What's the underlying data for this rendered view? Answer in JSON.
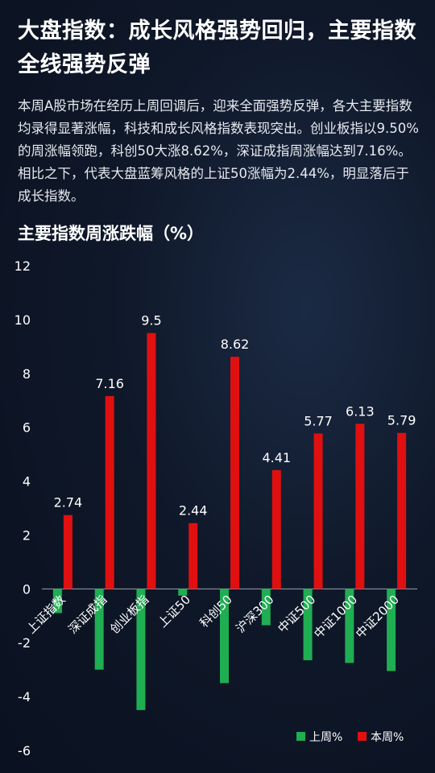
{
  "headline": "大盘指数：成长风格强势回归，主要指数全线强势反弹",
  "intro": "本周A股市场在经历上周回调后，迎来全面强势反弹，各大主要指数均录得显著涨幅，科技和成长风格指数表现突出。创业板指以9.50%的周涨幅领跑，科创50大涨8.62%，深证成指周涨幅达到7.16%。相比之下，代表大盘蓝筹风格的上证50涨幅为2.44%，明显落后于成长指数。",
  "chart_data": {
    "type": "bar",
    "title": "主要指数周涨跌幅（%）",
    "categories": [
      "上证指数",
      "深证成指",
      "创业板指",
      "上证50",
      "科创50",
      "沪深300",
      "中证500",
      "中证1000",
      "中证2000"
    ],
    "series": [
      {
        "name": "上周%",
        "color": "#1fae52",
        "values": [
          -0.9,
          -3.0,
          -4.5,
          -0.25,
          -3.5,
          -1.35,
          -2.65,
          -2.75,
          -3.05
        ]
      },
      {
        "name": "本周%",
        "color": "#e01010",
        "values": [
          2.74,
          7.16,
          9.5,
          2.44,
          8.62,
          4.41,
          5.77,
          6.13,
          5.79
        ]
      }
    ],
    "data_labels": [
      "2.74",
      "7.16",
      "9.5",
      "2.44",
      "8.62",
      "4.41",
      "5.77",
      "6.13",
      "5.79"
    ],
    "y_ticks": [
      -6,
      -4,
      -2,
      0,
      2,
      4,
      6,
      8,
      10,
      12
    ],
    "ylim": [
      -6,
      12
    ],
    "legend_position": "bottom-right",
    "grid": false
  }
}
